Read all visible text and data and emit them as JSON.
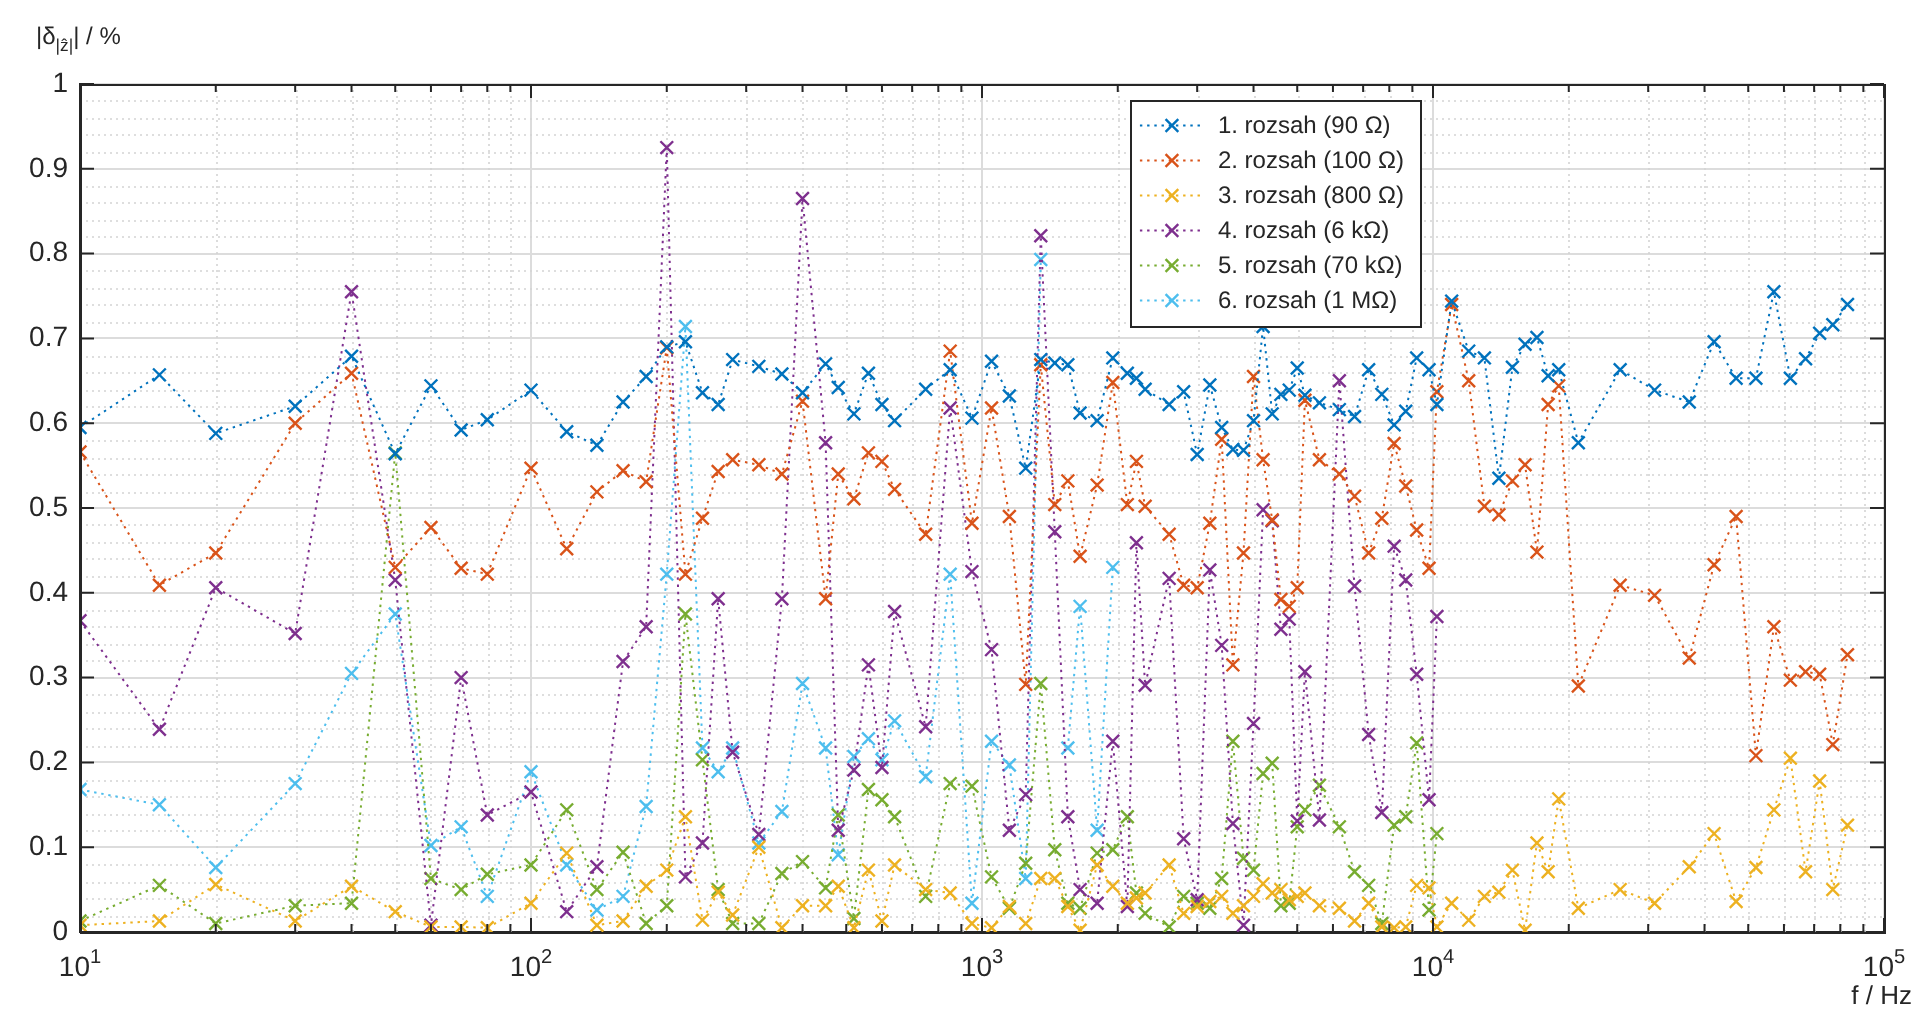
{
  "chart_data": {
    "type": "line",
    "xlabel": "f / Hz",
    "ylabel": "|δ$_{|ẑ|}$| / %",
    "x": [
      10,
      15,
      20,
      30,
      40,
      50,
      60,
      70,
      80,
      100,
      120,
      140,
      160,
      180,
      200,
      220,
      240,
      260,
      280,
      320,
      360,
      400,
      450,
      480,
      520,
      560,
      600,
      640,
      750,
      850,
      950,
      1050,
      1150,
      1250,
      1350,
      1450,
      1550,
      1650,
      1800,
      1950,
      2100,
      2200,
      2300,
      2600,
      2800,
      3000,
      3200,
      3400,
      3600,
      3800,
      4000,
      4200,
      4400,
      4600,
      4800,
      5000,
      5200,
      5600,
      6200,
      6700,
      7200,
      7700,
      8200,
      8700,
      9200,
      9800,
      10200,
      11000,
      12000,
      13000,
      14000,
      15000,
      16000,
      17000,
      18000,
      19000,
      21000,
      26000,
      31000,
      37000,
      42000,
      47000,
      52000,
      57000,
      62000,
      67000,
      72000,
      77000,
      83000
    ],
    "series": [
      {
        "name": "1. rozsah (90 Ω)",
        "color": "#0072bd",
        "values": [
          0.595,
          0.657,
          0.588,
          0.62,
          0.679,
          0.564,
          0.644,
          0.592,
          0.604,
          0.639,
          0.59,
          0.574,
          0.625,
          0.655,
          0.69,
          0.696,
          0.636,
          0.622,
          0.675,
          0.667,
          0.658,
          0.636,
          0.67,
          0.642,
          0.611,
          0.659,
          0.622,
          0.603,
          0.64,
          0.663,
          0.606,
          0.673,
          0.632,
          0.547,
          0.675,
          0.671,
          0.669,
          0.612,
          0.603,
          0.677,
          0.659,
          0.653,
          0.64,
          0.622,
          0.637,
          0.563,
          0.645,
          0.595,
          0.569,
          0.568,
          0.603,
          0.714,
          0.611,
          0.634,
          0.639,
          0.665,
          0.633,
          0.624,
          0.616,
          0.608,
          0.663,
          0.634,
          0.598,
          0.614,
          0.677,
          0.663,
          0.622,
          0.744,
          0.685,
          0.677,
          0.535,
          0.666,
          0.693,
          0.701,
          0.656,
          0.663,
          0.577,
          0.663,
          0.639,
          0.625,
          0.696,
          0.653,
          0.653,
          0.755,
          0.653,
          0.676,
          0.706,
          0.716,
          0.74
        ]
      },
      {
        "name": "2. rozsah (100 Ω)",
        "color": "#d95319",
        "values": [
          0.566,
          0.409,
          0.447,
          0.6,
          0.659,
          0.43,
          0.477,
          0.429,
          0.422,
          0.547,
          0.452,
          0.519,
          0.544,
          0.531,
          0.689,
          0.422,
          0.488,
          0.543,
          0.557,
          0.551,
          0.54,
          0.626,
          0.393,
          0.54,
          0.511,
          0.565,
          0.555,
          0.522,
          0.469,
          0.685,
          0.482,
          0.618,
          0.49,
          0.292,
          0.669,
          0.504,
          0.532,
          0.443,
          0.527,
          0.648,
          0.504,
          0.555,
          0.502,
          0.469,
          0.409,
          0.406,
          0.482,
          0.581,
          0.315,
          0.447,
          0.655,
          0.557,
          0.486,
          0.392,
          0.384,
          0.406,
          0.627,
          0.557,
          0.54,
          0.514,
          0.447,
          0.488,
          0.576,
          0.526,
          0.474,
          0.429,
          0.637,
          0.74,
          0.65,
          0.502,
          0.492,
          0.532,
          0.551,
          0.448,
          0.622,
          0.644,
          0.29,
          0.409,
          0.397,
          0.323,
          0.433,
          0.49,
          0.208,
          0.36,
          0.297,
          0.307,
          0.304,
          0.221,
          0.327
        ]
      },
      {
        "name": "3. rozsah (800 Ω)",
        "color": "#edb120",
        "values": [
          0.008,
          0.013,
          0.056,
          0.013,
          0.054,
          0.024,
          0.006,
          0.006,
          0.005,
          0.034,
          0.093,
          0.008,
          0.013,
          0.054,
          0.073,
          0.136,
          0.014,
          0.047,
          0.02,
          0.1,
          0.005,
          0.031,
          0.031,
          0.054,
          0.005,
          0.073,
          0.013,
          0.079,
          0.05,
          0.046,
          0.01,
          0.005,
          0.03,
          0.01,
          0.063,
          0.063,
          0.03,
          0.002,
          0.079,
          0.054,
          0.034,
          0.04,
          0.046,
          0.079,
          0.022,
          0.03,
          0.036,
          0.042,
          0.022,
          0.031,
          0.042,
          0.057,
          0.046,
          0.05,
          0.038,
          0.042,
          0.046,
          0.031,
          0.028,
          0.013,
          0.034,
          0.006,
          0.005,
          0.006,
          0.055,
          0.052,
          0.006,
          0.034,
          0.014,
          0.042,
          0.047,
          0.073,
          0.002,
          0.105,
          0.071,
          0.157,
          0.028,
          0.05,
          0.034,
          0.077,
          0.116,
          0.036,
          0.076,
          0.144,
          0.205,
          0.071,
          0.178,
          0.05,
          0.126
        ]
      },
      {
        "name": "4. rozsah (6 kΩ)",
        "color": "#7e2f8e",
        "values": [
          0.367,
          0.239,
          0.406,
          0.352,
          0.755,
          0.415,
          0.008,
          0.3,
          0.138,
          0.165,
          0.024,
          0.077,
          0.319,
          0.36,
          0.925,
          0.065,
          0.105,
          0.393,
          0.212,
          0.115,
          0.393,
          0.865,
          0.577,
          0.12,
          0.191,
          0.315,
          0.194,
          0.378,
          0.242,
          0.618,
          0.425,
          0.333,
          0.12,
          0.162,
          0.821,
          0.472,
          0.136,
          0.05,
          0.034,
          0.225,
          0.03,
          0.459,
          0.291,
          0.417,
          0.11,
          0.038,
          0.427,
          0.338,
          0.128,
          0.008,
          0.246,
          0.498,
          0.485,
          0.357,
          0.369,
          0.131,
          0.307,
          0.132,
          0.65,
          0.408,
          0.233,
          0.141,
          0.455,
          0.415,
          0.304,
          0.156,
          0.372,
          null,
          null,
          null,
          null,
          null,
          null,
          null,
          null,
          null,
          null,
          null,
          null,
          null,
          null,
          null,
          null,
          null,
          null,
          null,
          null,
          null,
          null
        ]
      },
      {
        "name": "5. rozsah (70 kΩ)",
        "color": "#77ac30",
        "values": [
          0.013,
          0.055,
          0.01,
          0.031,
          0.034,
          0.565,
          0.063,
          0.05,
          0.068,
          0.079,
          0.144,
          0.05,
          0.094,
          0.01,
          0.031,
          0.375,
          0.203,
          0.05,
          0.01,
          0.01,
          0.069,
          0.083,
          0.052,
          0.138,
          0.016,
          0.168,
          0.156,
          0.136,
          0.042,
          0.175,
          0.172,
          0.065,
          0.028,
          0.081,
          0.293,
          0.097,
          0.034,
          0.028,
          0.093,
          0.097,
          0.136,
          0.046,
          0.022,
          0.006,
          0.042,
          0.034,
          0.028,
          0.063,
          0.225,
          0.087,
          0.073,
          0.187,
          0.199,
          0.031,
          0.034,
          0.124,
          0.144,
          0.173,
          0.124,
          0.071,
          0.055,
          0.01,
          0.126,
          0.136,
          0.223,
          0.026,
          0.116,
          null,
          null,
          null,
          null,
          null,
          null,
          null,
          null,
          null,
          null,
          null,
          null,
          null,
          null,
          null,
          null,
          null,
          null,
          null,
          null,
          null,
          null
        ]
      },
      {
        "name": "6. rozsah (1 MΩ)",
        "color": "#4dbeee",
        "values": [
          0.168,
          0.15,
          0.076,
          0.175,
          0.305,
          0.375,
          0.102,
          0.124,
          0.042,
          0.189,
          0.079,
          0.026,
          0.042,
          0.148,
          0.422,
          0.714,
          0.217,
          0.189,
          0.217,
          0.105,
          0.142,
          0.293,
          0.217,
          0.091,
          0.207,
          0.228,
          0.203,
          0.249,
          0.183,
          0.422,
          0.034,
          0.225,
          0.197,
          0.063,
          0.793,
          null,
          0.217,
          0.384,
          0.12,
          0.43,
          null,
          null,
          null,
          null,
          null,
          null,
          null,
          null,
          null,
          null,
          null,
          null,
          null,
          null,
          null,
          null,
          null,
          null,
          null,
          null,
          null,
          null,
          null,
          null,
          null,
          null,
          null,
          null,
          null,
          null,
          null,
          null,
          null,
          null,
          null,
          null,
          null,
          null,
          null,
          null,
          null,
          null,
          null,
          null,
          null,
          null,
          null,
          null,
          null
        ]
      }
    ],
    "log": "x",
    "xlim": [
      10,
      100000
    ],
    "xticks": [
      {
        "value": 10,
        "label": "10$^{1}$"
      },
      {
        "value": 100,
        "label": "10$^{2}$"
      },
      {
        "value": 1000,
        "label": "10$^{3}$"
      },
      {
        "value": 10000,
        "label": "10$^{4}$"
      },
      {
        "value": 100000,
        "label": "10$^{5}$"
      }
    ],
    "ylim": [
      0,
      1
    ],
    "yticks": [
      0,
      0.1,
      0.2,
      0.3,
      0.4,
      0.5,
      0.6,
      0.7,
      0.8,
      0.9,
      1
    ],
    "grid": true,
    "legend": "top right",
    "marker": "cross",
    "line_style": "dotted"
  }
}
